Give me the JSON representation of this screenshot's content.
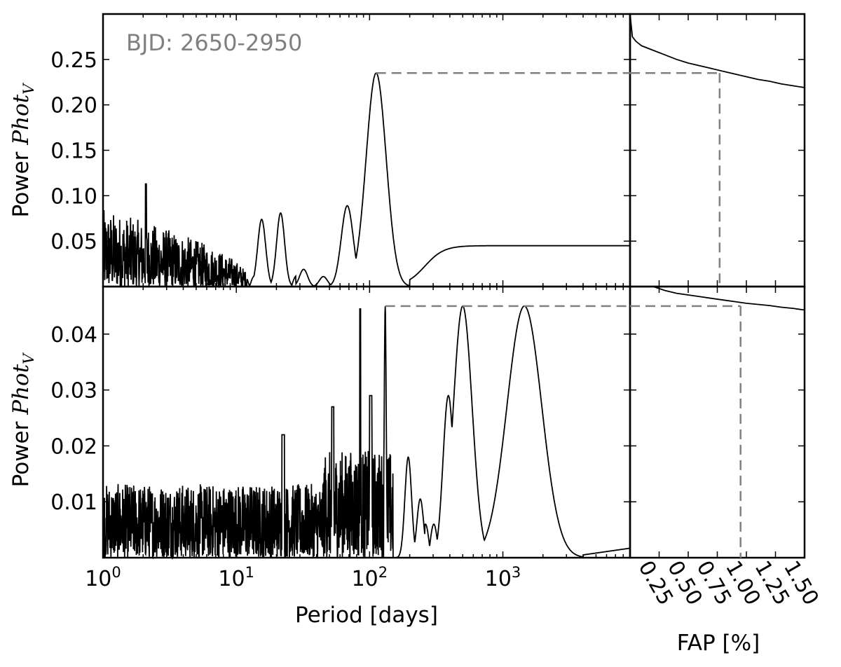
{
  "figure": {
    "xlabel": "Period [days]",
    "fap_xlabel": "FAP [%]",
    "annotation": "BJD: 2650-2950",
    "ylabel_prefix": "Power ",
    "ylabel_math": "Phot",
    "ylabel_sub": "V",
    "colors": {
      "line": "#000000",
      "threshold": "#808080",
      "annotation": "#808080"
    }
  },
  "chart_data": [
    {
      "type": "line",
      "panel": "top-periodogram",
      "xscale": "log",
      "xlim": [
        1,
        9000
      ],
      "ylim": [
        0,
        0.3
      ],
      "x_ticks": [
        "10^0",
        "10^1",
        "10^2",
        "10^3"
      ],
      "y_ticks": [
        "0.05",
        "0.10",
        "0.15",
        "0.20",
        "0.25"
      ],
      "peaks": [
        {
          "period": 15.5,
          "power": 0.074
        },
        {
          "period": 21.5,
          "power": 0.081
        },
        {
          "period": 32,
          "power": 0.019
        },
        {
          "period": 45,
          "power": 0.011
        },
        {
          "period": 68,
          "power": 0.089
        },
        {
          "period": 112,
          "power": 0.235
        }
      ],
      "plateau_power": 0.045,
      "threshold_power": 0.235
    },
    {
      "type": "line",
      "panel": "top-fap",
      "xlim": [
        0,
        1.5
      ],
      "ylim": [
        0,
        0.3
      ],
      "x_ticks": [
        "0.25",
        "0.50",
        "0.75",
        "1.00",
        "1.25",
        "1.50"
      ],
      "x": [
        0.0,
        0.02,
        0.05,
        0.1,
        0.2,
        0.3,
        0.4,
        0.5,
        0.6,
        0.7,
        0.8,
        0.9,
        1.0,
        1.1,
        1.2,
        1.3,
        1.4,
        1.5
      ],
      "y": [
        0.3,
        0.275,
        0.27,
        0.265,
        0.26,
        0.255,
        0.25,
        0.246,
        0.243,
        0.24,
        0.237,
        0.234,
        0.231,
        0.228,
        0.226,
        0.223,
        0.221,
        0.219
      ],
      "fap_marker": 0.77
    },
    {
      "type": "line",
      "panel": "bottom-periodogram",
      "xscale": "log",
      "xlim": [
        1,
        9000
      ],
      "ylim": [
        0,
        0.0485
      ],
      "x_ticks": [
        "10^0",
        "10^1",
        "10^2",
        "10^3"
      ],
      "y_ticks": [
        "0.01",
        "0.02",
        "0.03",
        "0.04"
      ],
      "peaks": [
        {
          "period": 85,
          "power": 0.0445
        },
        {
          "period": 130,
          "power": 0.045
        },
        {
          "period": 195,
          "power": 0.018
        },
        {
          "period": 240,
          "power": 0.0105
        },
        {
          "period": 390,
          "power": 0.029
        },
        {
          "period": 500,
          "power": 0.045
        },
        {
          "period": 1450,
          "power": 0.045
        }
      ],
      "threshold_power": 0.045
    },
    {
      "type": "line",
      "panel": "bottom-fap",
      "xlim": [
        0,
        1.5
      ],
      "ylim": [
        0,
        0.0485
      ],
      "x_ticks": [
        "0.25",
        "0.50",
        "0.75",
        "1.00",
        "1.25",
        "1.50"
      ],
      "x": [
        0.2,
        0.3,
        0.4,
        0.5,
        0.6,
        0.7,
        0.8,
        0.9,
        1.0,
        1.1,
        1.2,
        1.3,
        1.4,
        1.5
      ],
      "y": [
        0.0485,
        0.0478,
        0.0473,
        0.047,
        0.0467,
        0.0464,
        0.0461,
        0.0458,
        0.0455,
        0.0453,
        0.0451,
        0.0448,
        0.0446,
        0.0443
      ],
      "fap_marker": 0.95
    }
  ]
}
